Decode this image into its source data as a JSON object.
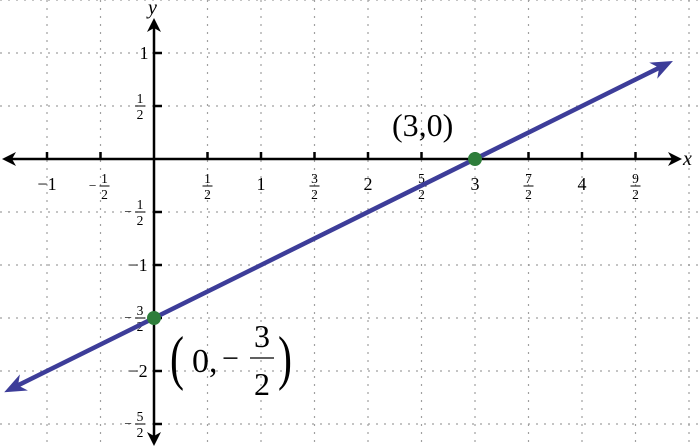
{
  "chart_data": {
    "type": "line",
    "title": "",
    "xlabel": "x",
    "ylabel": "y",
    "xlim": [
      -1.44,
      5.1
    ],
    "ylim": [
      -2.73,
      1.5
    ],
    "grid": true,
    "grid_step": 0.5,
    "colors": {
      "line": "#3d3d99",
      "point": "#2e7d3a",
      "grid": "#a0a0a0",
      "axis": "#000000"
    },
    "series": [
      {
        "equation": "y = x/2 - 3/2",
        "x": [
          -1.4,
          4.85
        ],
        "y": [
          -2.2,
          0.925
        ],
        "arrows": "both"
      }
    ],
    "points": [
      {
        "x": 3,
        "y": 0,
        "label": "(3,0)"
      },
      {
        "x": 0,
        "y": -1.5,
        "label_parts": {
          "open": "(",
          "zero": "0,",
          "minus": "−",
          "num": "3",
          "den": "2",
          "close": ")"
        }
      }
    ],
    "x_ticks": [
      {
        "v": -1,
        "text": "−1"
      },
      {
        "v": -0.5,
        "neg": true,
        "num": "1",
        "den": "2"
      },
      {
        "v": 0.5,
        "num": "1",
        "den": "2"
      },
      {
        "v": 1,
        "text": "1"
      },
      {
        "v": 1.5,
        "num": "3",
        "den": "2"
      },
      {
        "v": 2,
        "text": "2"
      },
      {
        "v": 2.5,
        "num": "5",
        "den": "2"
      },
      {
        "v": 3,
        "text": "3"
      },
      {
        "v": 3.5,
        "num": "7",
        "den": "2"
      },
      {
        "v": 4,
        "text": "4"
      },
      {
        "v": 4.5,
        "num": "9",
        "den": "2"
      }
    ],
    "y_ticks": [
      {
        "v": 1,
        "text": "1"
      },
      {
        "v": 0.5,
        "num": "1",
        "den": "2"
      },
      {
        "v": -0.5,
        "neg": true,
        "num": "1",
        "den": "2"
      },
      {
        "v": -1,
        "text": "−1"
      },
      {
        "v": -1.5,
        "neg": true,
        "num": "3",
        "den": "2"
      },
      {
        "v": -2,
        "text": "−2"
      },
      {
        "v": -2.5,
        "neg": true,
        "num": "5",
        "den": "2"
      }
    ]
  }
}
